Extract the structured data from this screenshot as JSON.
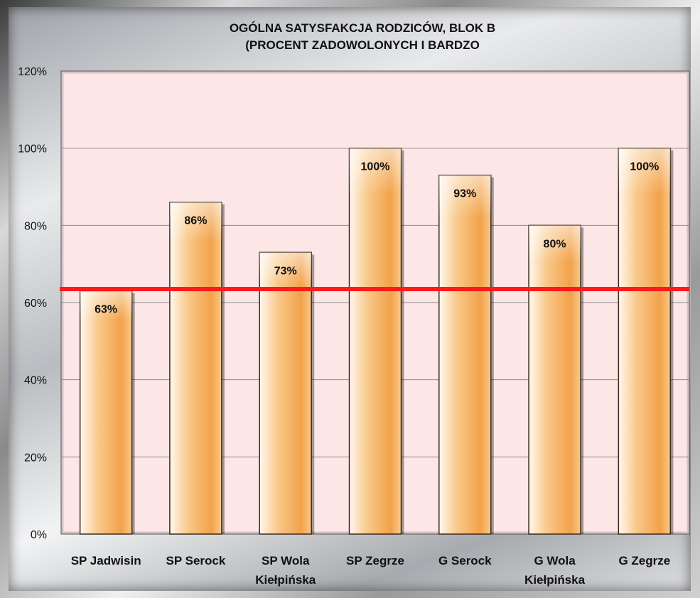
{
  "chart_data": {
    "type": "bar",
    "title_line1": "OGÓLNA SATYSFAKCJA RODZICÓW, BLOK B",
    "title_line2": "(PROCENT ZADOWOLONYCH I BARDZO",
    "categories": [
      [
        "SP Jadwisin"
      ],
      [
        "SP Serock"
      ],
      [
        "SP Wola",
        "Kiełpińska"
      ],
      [
        "SP Zegrze"
      ],
      [
        "G Serock"
      ],
      [
        "G Wola",
        "Kiełpińska"
      ],
      [
        "G Zegrze"
      ]
    ],
    "values": [
      63,
      86,
      73,
      100,
      93,
      80,
      100
    ],
    "data_labels": [
      "63%",
      "86%",
      "73%",
      "100%",
      "93%",
      "80%",
      "100%"
    ],
    "yticks": [
      "0%",
      "20%",
      "40%",
      "60%",
      "80%",
      "100%",
      "120%"
    ],
    "ylim": [
      0,
      120
    ],
    "reference_line": 63.5,
    "colors": {
      "plot_bg": "#fde6e6",
      "bar_light": "#fff8f0",
      "bar_mid": "#f9c88a",
      "bar_dark": "#f2a24a",
      "reference_line": "#ff1a1a",
      "grid": "#8c8c8c"
    }
  }
}
